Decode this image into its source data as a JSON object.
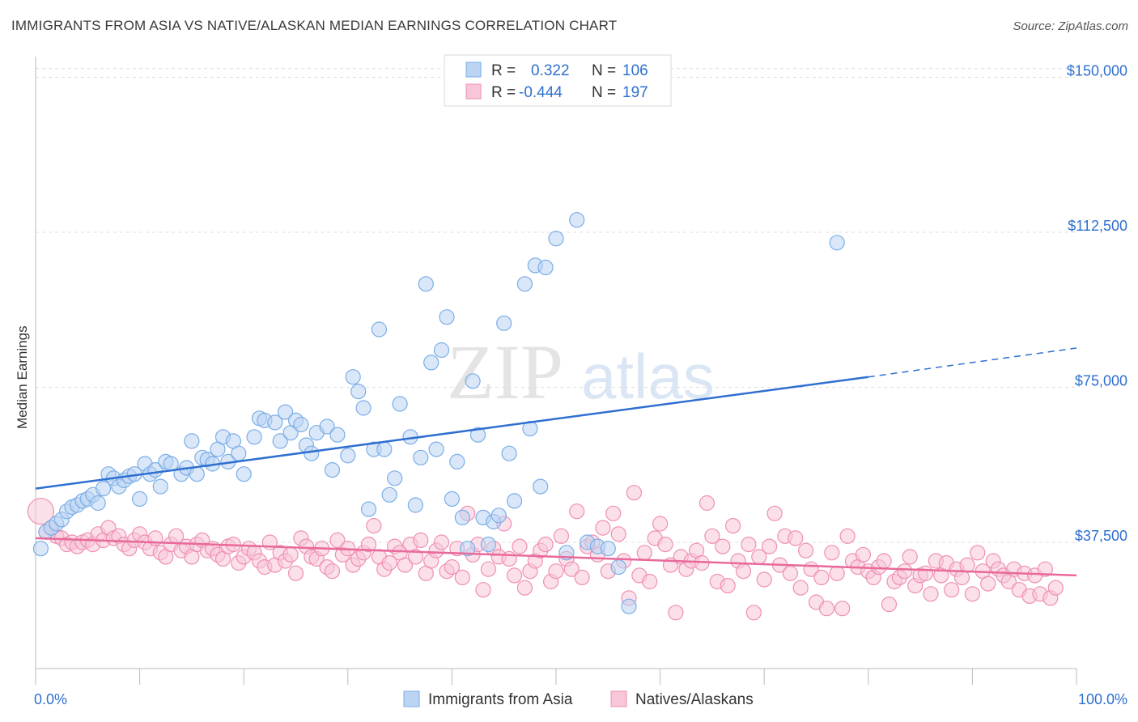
{
  "header": {
    "title": "IMMIGRANTS FROM ASIA VS NATIVE/ALASKAN MEDIAN EARNINGS CORRELATION CHART",
    "source": "Source: ZipAtlas.com"
  },
  "watermark": {
    "zip": "ZIP",
    "atlas": "atlas"
  },
  "colors": {
    "blue": "#7aaee8",
    "blue_fill": "#bcd4f3",
    "blue_line": "#2f6fd0",
    "pink": "#ef8fb3",
    "pink_fill": "#f7c6d8",
    "pink_line": "#e8699a",
    "grid": "#dddddd"
  },
  "legend": {
    "rows": [
      {
        "r_label": "R =",
        "r_value": "0.322",
        "n_label": "N =",
        "n_value": "106"
      },
      {
        "r_label": "R =",
        "r_value": "-0.444",
        "n_label": "N =",
        "n_value": "197"
      }
    ]
  },
  "chart_data": {
    "type": "scatter",
    "title": "IMMIGRANTS FROM ASIA VS NATIVE/ALASKAN MEDIAN EARNINGS CORRELATION CHART",
    "xlabel": "",
    "ylabel": "Median Earnings",
    "xlim": [
      0,
      100
    ],
    "ylim": [
      10000,
      160000
    ],
    "y_ticks": [
      {
        "value": 37500,
        "label": "$37,500"
      },
      {
        "value": 75000,
        "label": "$75,000"
      },
      {
        "value": 112500,
        "label": "$112,500"
      },
      {
        "value": 150000,
        "label": "$150,000"
      }
    ],
    "x_tick_labels": [
      {
        "value": 0,
        "label": "0.0%"
      },
      {
        "value": 100,
        "label": "100.0%"
      }
    ],
    "grid": true,
    "legend_placement": "top-center",
    "series": [
      {
        "name": "Immigrants from Asia",
        "color": "blue",
        "trend": {
          "x0": 0,
          "y0": 50500,
          "x1": 80,
          "y1": 77500,
          "dash_to_x": 100,
          "dash_to_y": 84500
        },
        "points": [
          [
            0.5,
            36000
          ],
          [
            1,
            40000
          ],
          [
            1.5,
            41000
          ],
          [
            2,
            42000
          ],
          [
            2.5,
            43000
          ],
          [
            3,
            45000
          ],
          [
            3.5,
            46000
          ],
          [
            4,
            46500
          ],
          [
            4.5,
            47500
          ],
          [
            5,
            48000
          ],
          [
            5.5,
            49000
          ],
          [
            6,
            47000
          ],
          [
            6.5,
            50500
          ],
          [
            7,
            54000
          ],
          [
            7.5,
            53000
          ],
          [
            8,
            51000
          ],
          [
            8.5,
            52500
          ],
          [
            9,
            53500
          ],
          [
            9.5,
            54000
          ],
          [
            10,
            48000
          ],
          [
            10.5,
            56500
          ],
          [
            11,
            54000
          ],
          [
            11.5,
            55000
          ],
          [
            12,
            51000
          ],
          [
            12.5,
            57000
          ],
          [
            13,
            56500
          ],
          [
            14,
            54000
          ],
          [
            14.5,
            55500
          ],
          [
            15,
            62000
          ],
          [
            15.5,
            54000
          ],
          [
            16,
            58000
          ],
          [
            16.5,
            57500
          ],
          [
            17,
            56500
          ],
          [
            17.5,
            60000
          ],
          [
            18,
            63000
          ],
          [
            18.5,
            57000
          ],
          [
            19,
            62000
          ],
          [
            19.5,
            59000
          ],
          [
            20,
            54000
          ],
          [
            21,
            63000
          ],
          [
            21.5,
            67500
          ],
          [
            22,
            67000
          ],
          [
            23,
            66500
          ],
          [
            23.5,
            62000
          ],
          [
            24,
            69000
          ],
          [
            24.5,
            64000
          ],
          [
            25,
            67000
          ],
          [
            25.5,
            66000
          ],
          [
            26,
            61000
          ],
          [
            26.5,
            59000
          ],
          [
            27,
            64000
          ],
          [
            28,
            65500
          ],
          [
            28.5,
            55000
          ],
          [
            29,
            63500
          ],
          [
            30,
            58500
          ],
          [
            30.5,
            77500
          ],
          [
            31,
            74000
          ],
          [
            31.5,
            70000
          ],
          [
            32,
            45500
          ],
          [
            32.5,
            60000
          ],
          [
            33,
            89000
          ],
          [
            33.5,
            60000
          ],
          [
            34,
            49000
          ],
          [
            34.5,
            53000
          ],
          [
            35,
            71000
          ],
          [
            36,
            63000
          ],
          [
            36.5,
            46500
          ],
          [
            37,
            58000
          ],
          [
            37.5,
            100000
          ],
          [
            38,
            81000
          ],
          [
            38.5,
            60000
          ],
          [
            39,
            84000
          ],
          [
            39.5,
            92000
          ],
          [
            40,
            48000
          ],
          [
            40.5,
            57000
          ],
          [
            41,
            43500
          ],
          [
            41.5,
            36000
          ],
          [
            42,
            76500
          ],
          [
            42.5,
            63500
          ],
          [
            43,
            43500
          ],
          [
            43.5,
            37000
          ],
          [
            44,
            42500
          ],
          [
            44.5,
            44000
          ],
          [
            45,
            90500
          ],
          [
            45.5,
            59000
          ],
          [
            46,
            47500
          ],
          [
            47,
            100000
          ],
          [
            47.5,
            65000
          ],
          [
            48,
            104500
          ],
          [
            48.5,
            51000
          ],
          [
            49,
            104000
          ],
          [
            50,
            111000
          ],
          [
            51,
            35000
          ],
          [
            52,
            115500
          ],
          [
            53,
            37500
          ],
          [
            54,
            36500
          ],
          [
            55,
            36000
          ],
          [
            56,
            31500
          ],
          [
            57,
            22000
          ],
          [
            77,
            110000
          ]
        ]
      },
      {
        "name": "Natives/Alaskans",
        "color": "pink",
        "trend": {
          "x0": 0,
          "y0": 38500,
          "x1": 100,
          "y1": 29500
        },
        "points": [
          [
            0.5,
            45000
          ],
          [
            1,
            40000
          ],
          [
            1.5,
            41000
          ],
          [
            2,
            39000
          ],
          [
            2.5,
            38500
          ],
          [
            3,
            37000
          ],
          [
            3.5,
            37500
          ],
          [
            4,
            36500
          ],
          [
            4.5,
            37500
          ],
          [
            5,
            38000
          ],
          [
            5.5,
            37000
          ],
          [
            6,
            39500
          ],
          [
            6.5,
            38000
          ],
          [
            7,
            41000
          ],
          [
            7.5,
            38500
          ],
          [
            8,
            39000
          ],
          [
            8.5,
            37000
          ],
          [
            9,
            36000
          ],
          [
            9.5,
            38000
          ],
          [
            10,
            39500
          ],
          [
            10.5,
            37500
          ],
          [
            11,
            36000
          ],
          [
            11.5,
            38500
          ],
          [
            12,
            35000
          ],
          [
            12.5,
            34000
          ],
          [
            13,
            37000
          ],
          [
            13.5,
            39000
          ],
          [
            14,
            35500
          ],
          [
            14.5,
            36500
          ],
          [
            15,
            34000
          ],
          [
            15.5,
            37000
          ],
          [
            16,
            38000
          ],
          [
            16.5,
            35500
          ],
          [
            17,
            36000
          ],
          [
            17.5,
            34500
          ],
          [
            18,
            33500
          ],
          [
            18.5,
            36500
          ],
          [
            19,
            37000
          ],
          [
            19.5,
            32500
          ],
          [
            20,
            34000
          ],
          [
            20.5,
            36000
          ],
          [
            21,
            35000
          ],
          [
            21.5,
            33000
          ],
          [
            22,
            31500
          ],
          [
            22.5,
            37500
          ],
          [
            23,
            32000
          ],
          [
            23.5,
            35000
          ],
          [
            24,
            33000
          ],
          [
            24.5,
            34500
          ],
          [
            25,
            30000
          ],
          [
            25.5,
            38500
          ],
          [
            26,
            36500
          ],
          [
            26.5,
            34000
          ],
          [
            27,
            33500
          ],
          [
            27.5,
            36000
          ],
          [
            28,
            31500
          ],
          [
            28.5,
            30500
          ],
          [
            29,
            38000
          ],
          [
            29.5,
            34500
          ],
          [
            30,
            36000
          ],
          [
            30.5,
            32000
          ],
          [
            31,
            33500
          ],
          [
            31.5,
            35000
          ],
          [
            32,
            37000
          ],
          [
            32.5,
            41500
          ],
          [
            33,
            34000
          ],
          [
            33.5,
            31000
          ],
          [
            34,
            32500
          ],
          [
            34.5,
            36500
          ],
          [
            35,
            35000
          ],
          [
            35.5,
            32000
          ],
          [
            36,
            37000
          ],
          [
            36.5,
            34000
          ],
          [
            37,
            38000
          ],
          [
            37.5,
            30000
          ],
          [
            38,
            33000
          ],
          [
            38.5,
            35500
          ],
          [
            39,
            37500
          ],
          [
            39.5,
            30500
          ],
          [
            40,
            31500
          ],
          [
            40.5,
            36000
          ],
          [
            41,
            29000
          ],
          [
            41.5,
            44500
          ],
          [
            42,
            34500
          ],
          [
            42.5,
            37000
          ],
          [
            43,
            26000
          ],
          [
            43.5,
            31000
          ],
          [
            44,
            36000
          ],
          [
            44.5,
            34000
          ],
          [
            45,
            42000
          ],
          [
            45.5,
            33500
          ],
          [
            46,
            29500
          ],
          [
            46.5,
            36500
          ],
          [
            47,
            26500
          ],
          [
            47.5,
            30500
          ],
          [
            48,
            33000
          ],
          [
            48.5,
            35500
          ],
          [
            49,
            37000
          ],
          [
            49.5,
            28000
          ],
          [
            50,
            30500
          ],
          [
            50.5,
            39000
          ],
          [
            51,
            33500
          ],
          [
            51.5,
            31000
          ],
          [
            52,
            45000
          ],
          [
            52.5,
            29000
          ],
          [
            53,
            36500
          ],
          [
            53.5,
            37500
          ],
          [
            54,
            34500
          ],
          [
            54.5,
            41000
          ],
          [
            55,
            30500
          ],
          [
            55.5,
            44500
          ],
          [
            56,
            39500
          ],
          [
            56.5,
            33000
          ],
          [
            57,
            24000
          ],
          [
            57.5,
            49500
          ],
          [
            58,
            29500
          ],
          [
            58.5,
            35000
          ],
          [
            59,
            28000
          ],
          [
            59.5,
            38500
          ],
          [
            60,
            42000
          ],
          [
            60.5,
            37000
          ],
          [
            61,
            32000
          ],
          [
            61.5,
            20500
          ],
          [
            62,
            34000
          ],
          [
            62.5,
            31000
          ],
          [
            63,
            33000
          ],
          [
            63.5,
            35500
          ],
          [
            64,
            32500
          ],
          [
            64.5,
            47000
          ],
          [
            65,
            39000
          ],
          [
            65.5,
            28000
          ],
          [
            66,
            36500
          ],
          [
            66.5,
            27000
          ],
          [
            67,
            41500
          ],
          [
            67.5,
            33000
          ],
          [
            68,
            30500
          ],
          [
            68.5,
            37000
          ],
          [
            69,
            20500
          ],
          [
            69.5,
            34000
          ],
          [
            70,
            28500
          ],
          [
            70.5,
            36500
          ],
          [
            71,
            44500
          ],
          [
            71.5,
            32000
          ],
          [
            72,
            39000
          ],
          [
            72.5,
            30000
          ],
          [
            73,
            38500
          ],
          [
            73.5,
            26500
          ],
          [
            74,
            35500
          ],
          [
            74.5,
            31000
          ],
          [
            75,
            23000
          ],
          [
            75.5,
            29000
          ],
          [
            76,
            21500
          ],
          [
            76.5,
            35000
          ],
          [
            77,
            30000
          ],
          [
            77.5,
            21500
          ],
          [
            78,
            39000
          ],
          [
            78.5,
            33000
          ],
          [
            79,
            31500
          ],
          [
            79.5,
            34500
          ],
          [
            80,
            30500
          ],
          [
            80.5,
            29000
          ],
          [
            81,
            31500
          ],
          [
            81.5,
            33000
          ],
          [
            82,
            22500
          ],
          [
            82.5,
            28000
          ],
          [
            83,
            29000
          ],
          [
            83.5,
            30500
          ],
          [
            84,
            34000
          ],
          [
            84.5,
            27000
          ],
          [
            85,
            29500
          ],
          [
            85.5,
            30000
          ],
          [
            86,
            25000
          ],
          [
            86.5,
            33000
          ],
          [
            87,
            29500
          ],
          [
            87.5,
            32500
          ],
          [
            88,
            26000
          ],
          [
            88.5,
            31000
          ],
          [
            89,
            29000
          ],
          [
            89.5,
            32000
          ],
          [
            90,
            25000
          ],
          [
            90.5,
            35000
          ],
          [
            91,
            30500
          ],
          [
            91.5,
            27500
          ],
          [
            92,
            33000
          ],
          [
            92.5,
            31000
          ],
          [
            93,
            29500
          ],
          [
            93.5,
            28000
          ],
          [
            94,
            31000
          ],
          [
            94.5,
            26000
          ],
          [
            95,
            30000
          ],
          [
            95.5,
            24500
          ],
          [
            96,
            29500
          ],
          [
            96.5,
            25000
          ],
          [
            97,
            31000
          ],
          [
            97.5,
            24000
          ],
          [
            98,
            26500
          ]
        ]
      }
    ]
  },
  "bottom_legend": [
    {
      "label": "Immigrants from Asia",
      "color": "blue"
    },
    {
      "label": "Natives/Alaskans",
      "color": "pink"
    }
  ]
}
